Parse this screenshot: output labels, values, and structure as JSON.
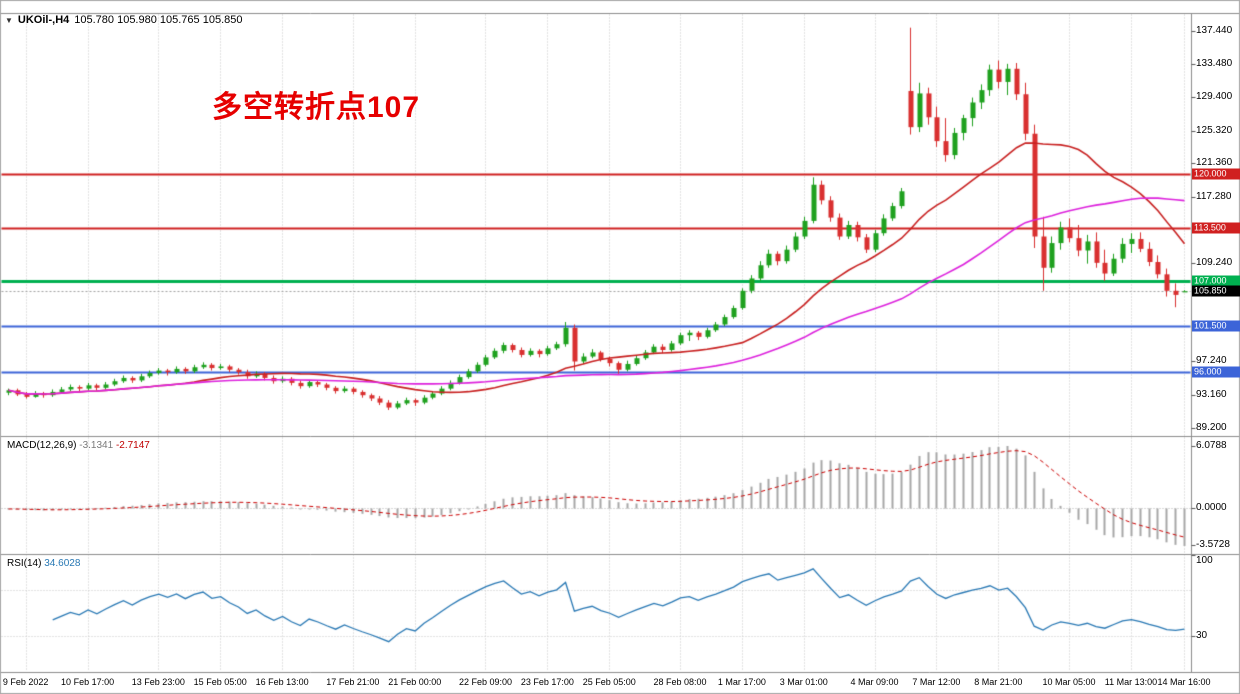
{
  "header": {
    "dropdown_icon": "▼",
    "symbol": "UKOil-,H4",
    "quote_line": "105.780 105.980 105.765 105.850"
  },
  "annotation": {
    "text": "多空转折点107",
    "color": "#e60000"
  },
  "colors": {
    "up_candle": "#1fa11f",
    "down_candle": "#d93030",
    "grid": "#c9c9c9",
    "macd_hist": "#a8a8a8",
    "macd_signal": "#cc0000",
    "rsi_line": "#2878b4",
    "separator": "#8c8c8c"
  },
  "chart_data": {
    "type": "candlestick",
    "symbol": "UKOil-",
    "timeframe": "H4",
    "quote": {
      "open": "105.780",
      "high": "105.980",
      "low": "105.765",
      "close": "105.850"
    },
    "price_axis": {
      "min": 88.3,
      "max": 139.5,
      "ticks": [
        {
          "v": 137.44,
          "t": "137.440"
        },
        {
          "v": 133.48,
          "t": "133.480"
        },
        {
          "v": 129.4,
          "t": "129.400"
        },
        {
          "v": 125.32,
          "t": "125.320"
        },
        {
          "v": 121.36,
          "t": "121.360"
        },
        {
          "v": 117.28,
          "t": "117.280"
        },
        {
          "v": 109.24,
          "t": "109.240"
        },
        {
          "v": 97.24,
          "t": "97.240"
        },
        {
          "v": 93.16,
          "t": "93.160"
        },
        {
          "v": 89.2,
          "t": "89.200"
        }
      ]
    },
    "hlines": [
      {
        "price": 120.0,
        "label": "120.000",
        "color": "#d02020",
        "width": 2
      },
      {
        "price": 113.5,
        "label": "113.500",
        "color": "#d02020",
        "width": 2
      },
      {
        "price": 107.0,
        "label": "107.000",
        "color": "#00b050",
        "width": 3
      },
      {
        "price": 101.5,
        "label": "101.500",
        "color": "#3c64d8",
        "width": 2
      },
      {
        "price": 96.0,
        "label": "96.000",
        "color": "#3c64d8",
        "width": 2
      }
    ],
    "current_price": {
      "value": 105.85,
      "label": "105.850",
      "line_color": "#a0a0a0",
      "tag_bg": "#000000"
    },
    "moving_averages": [
      {
        "name": "ma-fast",
        "period": 20,
        "color": "#c82020"
      },
      {
        "name": "ma-slow",
        "period": 45,
        "color": "#dd22dd"
      }
    ],
    "macd": {
      "label": "MACD(12,26,9)",
      "value_main": "-3.1341",
      "value_signal": "-2.7147",
      "fast": 12,
      "slow": 26,
      "signal": 9,
      "scale_max": 6.0788,
      "scale_min": -3.5728,
      "range": [
        -4.3,
        6.9
      ],
      "axis_ticks": [
        {
          "v": 6.0788,
          "t": "6.0788"
        },
        {
          "v": 0,
          "t": "0.0000"
        },
        {
          "v": -3.5728,
          "t": "-3.5728"
        }
      ]
    },
    "rsi": {
      "label": "RSI(14)",
      "value": "34.6028",
      "period": 14,
      "levels": [
        30,
        70
      ],
      "axis_ticks": [
        {
          "v": 100,
          "t": "100"
        },
        {
          "v": 30,
          "t": "30"
        }
      ]
    },
    "x_axis_labels": [
      {
        "label": "9 Feb 2022",
        "index": 2
      },
      {
        "label": "10 Feb 17:00",
        "index": 9
      },
      {
        "label": "13 Feb 23:00",
        "index": 17
      },
      {
        "label": "15 Feb 05:00",
        "index": 24
      },
      {
        "label": "16 Feb 13:00",
        "index": 31
      },
      {
        "label": "17 Feb 21:00",
        "index": 39
      },
      {
        "label": "21 Feb 00:00",
        "index": 46
      },
      {
        "label": "22 Feb 09:00",
        "index": 54
      },
      {
        "label": "23 Feb 17:00",
        "index": 61
      },
      {
        "label": "25 Feb 05:00",
        "index": 68
      },
      {
        "label": "28 Feb 08:00",
        "index": 76
      },
      {
        "label": "1 Mar 17:00",
        "index": 83
      },
      {
        "label": "3 Mar 01:00",
        "index": 90
      },
      {
        "label": "4 Mar 09:00",
        "index": 98
      },
      {
        "label": "7 Mar 12:00",
        "index": 105
      },
      {
        "label": "8 Mar 21:00",
        "index": 112
      },
      {
        "label": "10 Mar 05:00",
        "index": 120
      },
      {
        "label": "11 Mar 13:00",
        "index": 127
      },
      {
        "label": "14 Mar 16:00",
        "index": 133
      }
    ],
    "candles": [
      [
        93.5,
        94.0,
        93.2,
        93.8
      ],
      [
        93.8,
        94.0,
        93.1,
        93.3
      ],
      [
        93.3,
        93.6,
        92.8,
        93.0
      ],
      [
        93.0,
        93.7,
        92.9,
        93.4
      ],
      [
        93.4,
        93.6,
        92.9,
        93.2
      ],
      [
        93.2,
        93.9,
        93.0,
        93.6
      ],
      [
        93.6,
        94.2,
        93.4,
        93.9
      ],
      [
        93.9,
        94.5,
        93.7,
        94.2
      ],
      [
        94.2,
        94.4,
        93.7,
        94.0
      ],
      [
        94.0,
        94.7,
        93.8,
        94.4
      ],
      [
        94.4,
        94.6,
        93.8,
        94.1
      ],
      [
        94.1,
        94.8,
        93.9,
        94.5
      ],
      [
        94.5,
        95.2,
        94.3,
        94.9
      ],
      [
        94.9,
        95.6,
        94.7,
        95.3
      ],
      [
        95.3,
        95.5,
        94.7,
        95.0
      ],
      [
        95.0,
        95.8,
        94.8,
        95.5
      ],
      [
        95.5,
        96.2,
        95.3,
        95.9
      ],
      [
        95.9,
        96.5,
        95.7,
        96.2
      ],
      [
        96.2,
        96.4,
        95.6,
        96.0
      ],
      [
        96.0,
        96.7,
        95.8,
        96.4
      ],
      [
        96.4,
        96.6,
        95.8,
        96.1
      ],
      [
        96.1,
        96.9,
        95.9,
        96.6
      ],
      [
        96.6,
        97.2,
        96.4,
        96.9
      ],
      [
        96.9,
        97.1,
        96.2,
        96.5
      ],
      [
        96.5,
        97.0,
        96.3,
        96.7
      ],
      [
        96.7,
        96.9,
        96.0,
        96.3
      ],
      [
        96.3,
        96.5,
        95.7,
        96.0
      ],
      [
        96.0,
        96.3,
        95.2,
        95.5
      ],
      [
        95.5,
        96.1,
        95.3,
        95.8
      ],
      [
        95.8,
        96.0,
        95.0,
        95.3
      ],
      [
        95.3,
        95.6,
        94.6,
        94.9
      ],
      [
        94.9,
        95.5,
        94.7,
        95.2
      ],
      [
        95.2,
        95.4,
        94.4,
        94.7
      ],
      [
        94.7,
        95.0,
        94.0,
        94.3
      ],
      [
        94.3,
        95.0,
        94.1,
        94.8
      ],
      [
        94.8,
        95.0,
        94.2,
        94.5
      ],
      [
        94.5,
        94.7,
        93.8,
        94.1
      ],
      [
        94.1,
        94.3,
        93.4,
        93.7
      ],
      [
        93.7,
        94.3,
        93.5,
        94.0
      ],
      [
        94.0,
        94.2,
        93.3,
        93.6
      ],
      [
        93.6,
        93.8,
        92.9,
        93.2
      ],
      [
        93.2,
        93.4,
        92.5,
        92.8
      ],
      [
        92.8,
        93.1,
        92.0,
        92.3
      ],
      [
        92.3,
        92.6,
        91.4,
        91.7
      ],
      [
        91.7,
        92.5,
        91.5,
        92.2
      ],
      [
        92.2,
        92.9,
        92.0,
        92.6
      ],
      [
        92.6,
        92.8,
        91.9,
        92.3
      ],
      [
        92.3,
        93.2,
        92.1,
        92.9
      ],
      [
        92.9,
        93.7,
        92.7,
        93.4
      ],
      [
        93.4,
        94.3,
        93.2,
        94.0
      ],
      [
        94.0,
        95.0,
        93.8,
        94.7
      ],
      [
        94.7,
        95.7,
        94.5,
        95.4
      ],
      [
        95.4,
        96.4,
        95.2,
        96.1
      ],
      [
        96.1,
        97.2,
        95.9,
        96.9
      ],
      [
        96.9,
        98.1,
        96.7,
        97.8
      ],
      [
        97.8,
        98.9,
        97.6,
        98.6
      ],
      [
        98.6,
        99.6,
        98.3,
        99.3
      ],
      [
        99.3,
        99.5,
        98.4,
        98.7
      ],
      [
        98.7,
        99.0,
        97.8,
        98.1
      ],
      [
        98.1,
        98.9,
        97.9,
        98.6
      ],
      [
        98.6,
        98.8,
        97.8,
        98.2
      ],
      [
        98.2,
        99.2,
        98.0,
        98.9
      ],
      [
        98.9,
        99.7,
        98.7,
        99.4
      ],
      [
        99.4,
        102.1,
        99.1,
        101.4
      ],
      [
        101.4,
        101.8,
        96.2,
        97.3
      ],
      [
        97.3,
        98.3,
        97.0,
        97.9
      ],
      [
        97.9,
        98.8,
        97.7,
        98.4
      ],
      [
        98.4,
        98.6,
        97.3,
        97.6
      ],
      [
        97.6,
        97.9,
        96.7,
        97.1
      ],
      [
        97.1,
        97.3,
        95.8,
        96.3
      ],
      [
        96.3,
        97.4,
        96.1,
        97.0
      ],
      [
        97.0,
        98.0,
        96.8,
        97.7
      ],
      [
        97.7,
        98.7,
        97.5,
        98.4
      ],
      [
        98.4,
        99.4,
        98.2,
        99.1
      ],
      [
        99.1,
        99.4,
        98.3,
        98.7
      ],
      [
        98.7,
        99.8,
        98.5,
        99.5
      ],
      [
        99.5,
        100.8,
        99.3,
        100.5
      ],
      [
        100.5,
        101.1,
        99.8,
        100.8
      ],
      [
        100.8,
        101.0,
        99.9,
        100.3
      ],
      [
        100.3,
        101.4,
        100.1,
        101.1
      ],
      [
        101.1,
        102.1,
        100.9,
        101.8
      ],
      [
        101.8,
        103.0,
        101.6,
        102.7
      ],
      [
        102.7,
        104.1,
        102.5,
        103.8
      ],
      [
        103.8,
        106.2,
        103.6,
        105.9
      ],
      [
        105.9,
        107.8,
        105.6,
        107.4
      ],
      [
        107.4,
        109.5,
        107.1,
        109.0
      ],
      [
        109.0,
        110.9,
        108.7,
        110.4
      ],
      [
        110.4,
        110.7,
        109.0,
        109.5
      ],
      [
        109.5,
        111.4,
        109.2,
        110.9
      ],
      [
        110.9,
        113.0,
        110.6,
        112.5
      ],
      [
        112.5,
        114.9,
        112.2,
        114.4
      ],
      [
        114.4,
        119.7,
        114.1,
        118.8
      ],
      [
        118.8,
        119.3,
        116.4,
        116.9
      ],
      [
        116.9,
        117.4,
        114.3,
        114.8
      ],
      [
        114.8,
        115.3,
        112.1,
        112.5
      ],
      [
        112.5,
        114.4,
        112.2,
        113.9
      ],
      [
        113.9,
        114.3,
        111.9,
        112.4
      ],
      [
        112.4,
        112.8,
        110.5,
        110.9
      ],
      [
        110.9,
        113.3,
        110.6,
        112.9
      ],
      [
        112.9,
        115.2,
        112.6,
        114.7
      ],
      [
        114.7,
        116.6,
        114.4,
        116.2
      ],
      [
        116.2,
        118.4,
        115.9,
        118.0
      ],
      [
        130.2,
        137.9,
        124.9,
        125.8
      ],
      [
        125.8,
        131.2,
        125.2,
        129.9
      ],
      [
        129.9,
        130.6,
        126.1,
        127.0
      ],
      [
        127.0,
        128.3,
        123.4,
        124.1
      ],
      [
        124.1,
        126.9,
        121.6,
        122.4
      ],
      [
        122.4,
        125.7,
        121.9,
        125.1
      ],
      [
        125.1,
        127.3,
        124.2,
        126.9
      ],
      [
        126.9,
        129.4,
        125.9,
        128.8
      ],
      [
        128.8,
        131.0,
        128.0,
        130.3
      ],
      [
        130.3,
        133.4,
        129.6,
        132.8
      ],
      [
        132.8,
        133.9,
        130.5,
        131.3
      ],
      [
        131.3,
        133.5,
        129.7,
        132.9
      ],
      [
        132.9,
        133.6,
        129.1,
        129.8
      ],
      [
        129.8,
        131.2,
        124.2,
        125.0
      ],
      [
        125.0,
        126.1,
        111.1,
        112.5
      ],
      [
        112.5,
        114.9,
        105.9,
        108.7
      ],
      [
        108.7,
        112.5,
        108.1,
        111.7
      ],
      [
        111.7,
        114.3,
        110.9,
        113.6
      ],
      [
        113.6,
        114.7,
        111.8,
        112.3
      ],
      [
        112.3,
        113.9,
        110.1,
        110.8
      ],
      [
        110.8,
        112.7,
        109.2,
        111.9
      ],
      [
        111.9,
        113.0,
        108.7,
        109.3
      ],
      [
        109.3,
        110.9,
        107.1,
        108.0
      ],
      [
        108.0,
        110.4,
        107.7,
        109.8
      ],
      [
        109.8,
        112.3,
        109.3,
        111.6
      ],
      [
        111.6,
        112.9,
        110.5,
        112.2
      ],
      [
        112.2,
        113.0,
        110.6,
        111.0
      ],
      [
        111.0,
        111.8,
        108.9,
        109.4
      ],
      [
        109.4,
        110.2,
        107.4,
        107.9
      ],
      [
        107.9,
        108.6,
        105.2,
        105.9
      ],
      [
        105.9,
        106.8,
        103.9,
        105.4
      ],
      [
        105.78,
        105.98,
        105.765,
        105.85
      ]
    ]
  }
}
